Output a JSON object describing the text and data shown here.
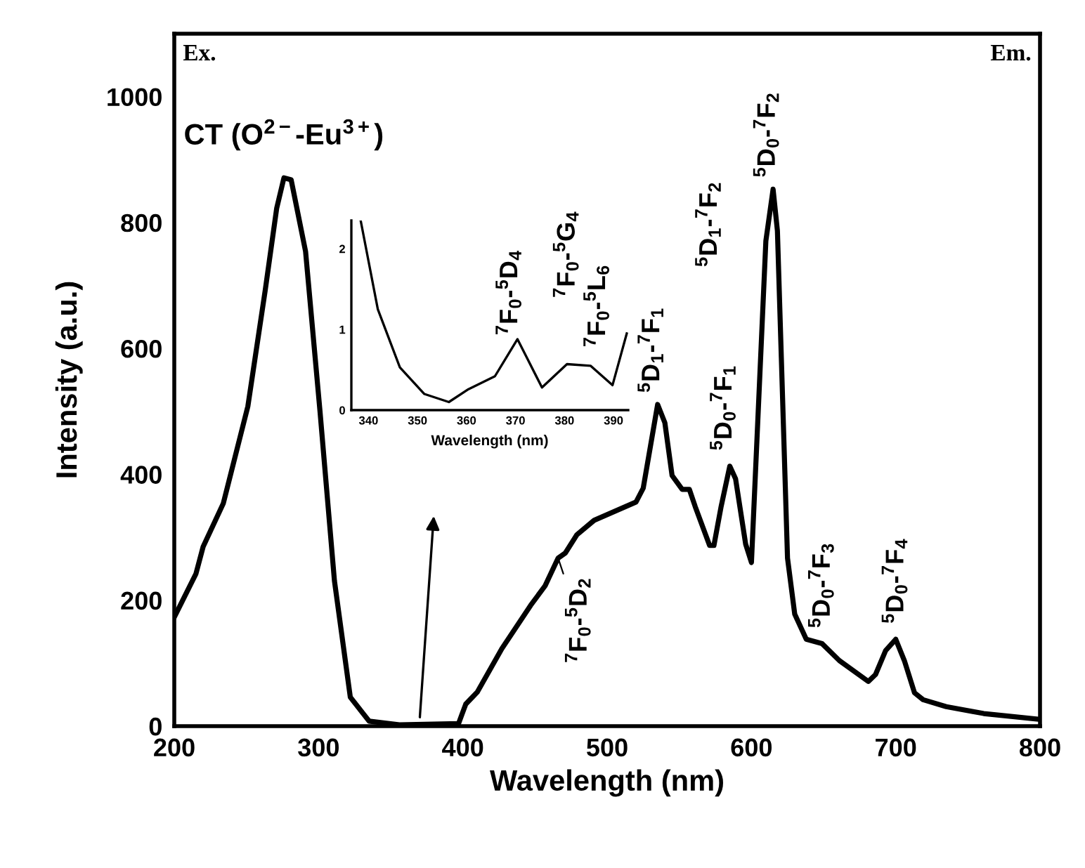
{
  "chart_data": [
    {
      "type": "line",
      "xlabel": "Wavelength (nm)",
      "ylabel": "Intensity (a.u.)",
      "xlim": [
        200,
        800
      ],
      "ylim": [
        0,
        1100
      ],
      "xticks": [
        200,
        300,
        400,
        500,
        600,
        700,
        800
      ],
      "yticks": [
        0,
        200,
        400,
        600,
        800,
        1000
      ],
      "line_style": "solid",
      "marker": "none",
      "series": [
        {
          "color": "#000000",
          "x": [
            200,
            215,
            220,
            234,
            251,
            263,
            271,
            276,
            281,
            291,
            301,
            311,
            322,
            335,
            356,
            397,
            402,
            410,
            427,
            447,
            457,
            466,
            471,
            479,
            491,
            520,
            525,
            535,
            540,
            545,
            552,
            557,
            561,
            571,
            574,
            579,
            585,
            589,
            596,
            600,
            610,
            615,
            618,
            625,
            630,
            638,
            649,
            661,
            681,
            686,
            693,
            700,
            706,
            713,
            719,
            735,
            761,
            799
          ],
          "values": [
            173,
            242,
            285,
            354,
            508,
            692,
            823,
            871,
            868,
            754,
            500,
            231,
            46,
            8,
            2,
            4,
            35,
            54,
            123,
            192,
            223,
            267,
            275,
            304,
            327,
            356,
            378,
            511,
            482,
            398,
            376,
            376,
            349,
            287,
            287,
            349,
            413,
            393,
            289,
            260,
            771,
            853,
            787,
            267,
            178,
            138,
            131,
            104,
            71,
            82,
            120,
            138,
            104,
            53,
            42,
            31,
            20,
            11
          ]
        }
      ],
      "annotations": [
        "Ex.",
        "Em.",
        {
          "text": "CT (O$^{2−}$-Eu$^{3+}$)",
          "x": 276,
          "y": 871
        },
        {
          "text": "$^{7}$F$_{0}$-$^{5}$D$_{2}$",
          "x": 466,
          "y": 267
        },
        {
          "text": "$^{5}$D$_{1}$-$^{7}$F$_{1}$",
          "x": 535,
          "y": 511
        },
        "$^{5}$D$_{1}$-$^{7}$F$_{2}$",
        {
          "text": "$^{5}$D$_{0}$-$^{7}$F$_{1}$",
          "x": 585,
          "y": 413
        },
        {
          "text": "$^{5}$D$_{0}$-$^{7}$F$_{2}$",
          "x": 615,
          "y": 853
        },
        {
          "text": "$^{5}$D$_{0}$-$^{7}$F$_{3}$",
          "x": 649,
          "y": 131
        },
        {
          "text": "$^{5}$D$_{0}$-$^{7}$F$_{4}$",
          "x": 700,
          "y": 138
        }
      ]
    },
    {
      "type": "line",
      "xlabel": "Wavelength (nm)",
      "xlim": [
        336.5,
        393
      ],
      "ylim": [
        0,
        2.35
      ],
      "xticks": [
        340,
        350,
        360,
        370,
        380,
        390
      ],
      "yticks": [
        0,
        1,
        2
      ],
      "line_style": "solid",
      "marker": "none",
      "series": [
        {
          "color": "#000000",
          "x": [
            338.4,
            341.9,
            346.4,
            351.4,
            356.4,
            360.4,
            365.8,
            370.4,
            375.4,
            380.5,
            385.3,
            389.8,
            392.7
          ],
          "values": [
            2.35,
            1.25,
            0.53,
            0.2,
            0.1,
            0.26,
            0.42,
            0.88,
            0.28,
            0.57,
            0.55,
            0.31,
            0.95
          ]
        }
      ],
      "annotations": [
        {
          "text": "$^{7}$F$_{0}$-$^{5}$D$_{4}$",
          "x": 370.4,
          "y": 0.88
        },
        {
          "text": "$^{7}$F$_{0}$-$^{5}$G$_{4}$",
          "x": 380.5,
          "y": 0.57
        },
        {
          "text": "$^{7}$F$_{0}$-$^{5}$L$_{6}$",
          "x": 392.7,
          "y": 0.95
        }
      ]
    }
  ]
}
